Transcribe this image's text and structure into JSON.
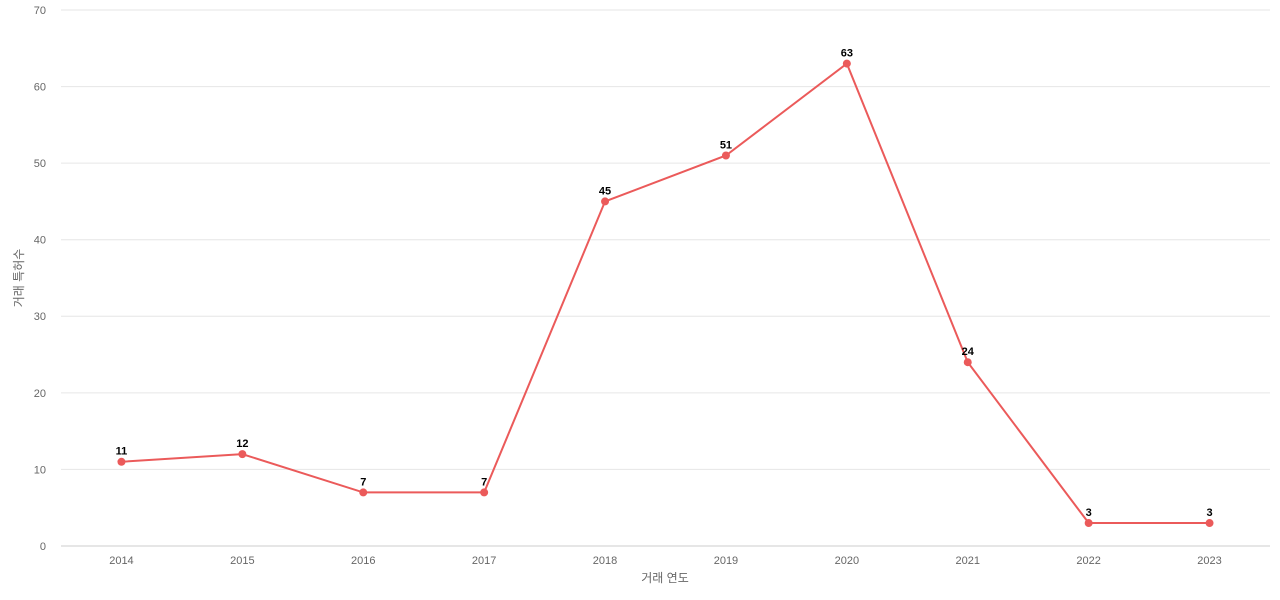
{
  "chart_data": {
    "type": "line",
    "x_label": "거래 연도",
    "y_label": "거래 특허수",
    "categories": [
      "2014",
      "2015",
      "2016",
      "2017",
      "2018",
      "2019",
      "2020",
      "2021",
      "2022",
      "2023"
    ],
    "values": [
      11,
      12,
      7,
      7,
      45,
      51,
      63,
      24,
      3,
      3
    ],
    "color": "#eb5a5a",
    "ylim": [
      0,
      70
    ],
    "yticks": [
      0,
      10,
      20,
      30,
      40,
      50,
      60,
      70
    ],
    "grid": true
  }
}
